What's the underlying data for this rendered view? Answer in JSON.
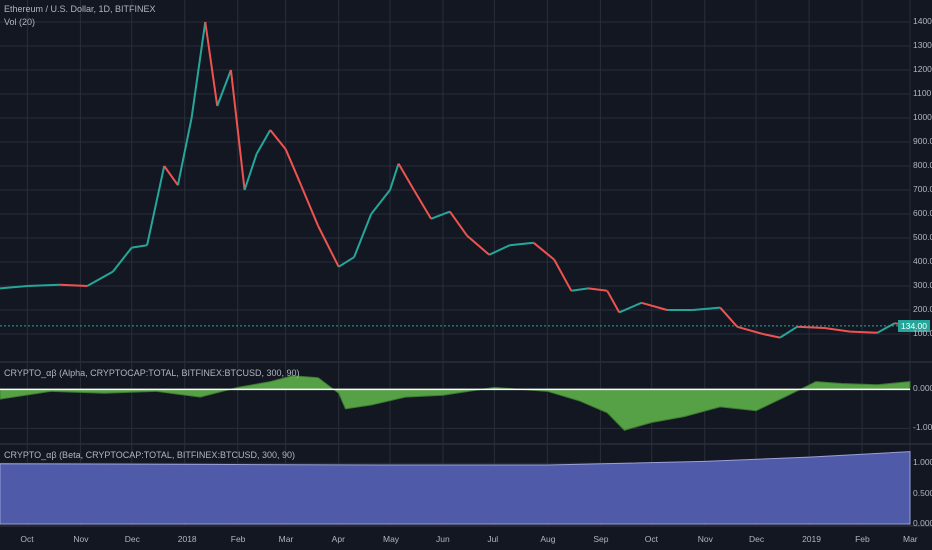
{
  "title": "Ethereum / U.S. Dollar, 1D, BITFINEX",
  "vol_label": "Vol (20)",
  "alpha_label": "CRYPTO_αβ (Alpha, CRYPTOCAP:TOTAL, BITFINEX:BTCUSD, 300, 90)",
  "beta_label": "CRYPTO_αβ (Beta, CRYPTOCAP:TOTAL, BITFINEX:BTCUSD, 300, 90)",
  "last_price": "134.00",
  "colors": {
    "up": "#26a69a",
    "down": "#ef5350",
    "alpha_fill": "#56a146",
    "beta_fill": "#4f5aa8",
    "bg": "#131722",
    "grid": "#2a2e39"
  },
  "chart_data": [
    {
      "type": "line",
      "name": "price",
      "title": "Ethereum / U.S. Dollar, 1D, BITFINEX",
      "y_ticks": [
        "100.00",
        "200.00",
        "300.00",
        "400.00",
        "500.00",
        "600.00",
        "700.00",
        "800.00",
        "900.00",
        "1000.00",
        "1100.00",
        "1200.00",
        "1300.00",
        "1400.00"
      ],
      "ylim": [
        0,
        1450
      ],
      "x_ticks": [
        "Oct",
        "Nov",
        "Dec",
        "2018",
        "Feb",
        "Mar",
        "Apr",
        "May",
        "Jun",
        "Jul",
        "Aug",
        "Sep",
        "Oct",
        "Nov",
        "Dec",
        "2019",
        "Feb",
        "Mar"
      ],
      "series": [
        {
          "values": [
            {
              "x": "2017-09-15",
              "y": 290
            },
            {
              "x": "2017-10-01",
              "y": 300
            },
            {
              "x": "2017-10-20",
              "y": 305
            },
            {
              "x": "2017-11-05",
              "y": 300
            },
            {
              "x": "2017-11-20",
              "y": 360
            },
            {
              "x": "2017-12-01",
              "y": 460
            },
            {
              "x": "2017-12-10",
              "y": 470
            },
            {
              "x": "2017-12-20",
              "y": 800
            },
            {
              "x": "2017-12-28",
              "y": 720
            },
            {
              "x": "2018-01-05",
              "y": 1000
            },
            {
              "x": "2018-01-13",
              "y": 1400
            },
            {
              "x": "2018-01-20",
              "y": 1050
            },
            {
              "x": "2018-01-28",
              "y": 1200
            },
            {
              "x": "2018-02-05",
              "y": 700
            },
            {
              "x": "2018-02-12",
              "y": 850
            },
            {
              "x": "2018-02-20",
              "y": 950
            },
            {
              "x": "2018-03-01",
              "y": 870
            },
            {
              "x": "2018-03-10",
              "y": 720
            },
            {
              "x": "2018-03-20",
              "y": 550
            },
            {
              "x": "2018-04-01",
              "y": 380
            },
            {
              "x": "2018-04-10",
              "y": 420
            },
            {
              "x": "2018-04-20",
              "y": 600
            },
            {
              "x": "2018-05-01",
              "y": 700
            },
            {
              "x": "2018-05-06",
              "y": 810
            },
            {
              "x": "2018-05-15",
              "y": 700
            },
            {
              "x": "2018-05-25",
              "y": 580
            },
            {
              "x": "2018-06-05",
              "y": 610
            },
            {
              "x": "2018-06-15",
              "y": 510
            },
            {
              "x": "2018-06-28",
              "y": 430
            },
            {
              "x": "2018-07-10",
              "y": 470
            },
            {
              "x": "2018-07-24",
              "y": 480
            },
            {
              "x": "2018-08-05",
              "y": 410
            },
            {
              "x": "2018-08-15",
              "y": 280
            },
            {
              "x": "2018-08-25",
              "y": 290
            },
            {
              "x": "2018-09-05",
              "y": 280
            },
            {
              "x": "2018-09-12",
              "y": 190
            },
            {
              "x": "2018-09-25",
              "y": 230
            },
            {
              "x": "2018-10-10",
              "y": 200
            },
            {
              "x": "2018-10-25",
              "y": 200
            },
            {
              "x": "2018-11-10",
              "y": 210
            },
            {
              "x": "2018-11-20",
              "y": 130
            },
            {
              "x": "2018-12-05",
              "y": 100
            },
            {
              "x": "2018-12-15",
              "y": 85
            },
            {
              "x": "2018-12-25",
              "y": 130
            },
            {
              "x": "2019-01-10",
              "y": 125
            },
            {
              "x": "2019-01-25",
              "y": 110
            },
            {
              "x": "2019-02-10",
              "y": 105
            },
            {
              "x": "2019-02-20",
              "y": 145
            },
            {
              "x": "2019-03-01",
              "y": 134
            }
          ]
        }
      ]
    },
    {
      "type": "area",
      "name": "alpha",
      "title": "CRYPTO_αβ (Alpha, CRYPTOCAP:TOTAL, BITFINEX:BTCUSD, 300, 90)",
      "y_ticks": [
        "0.0000",
        "-1.0000"
      ],
      "ylim": [
        -1.3,
        0.6
      ],
      "series": [
        {
          "values": [
            {
              "x": "2017-09-15",
              "y": -0.25
            },
            {
              "x": "2017-10-15",
              "y": -0.05
            },
            {
              "x": "2017-11-15",
              "y": -0.1
            },
            {
              "x": "2017-12-15",
              "y": -0.05
            },
            {
              "x": "2018-01-10",
              "y": -0.2
            },
            {
              "x": "2018-02-01",
              "y": 0.05
            },
            {
              "x": "2018-02-20",
              "y": 0.2
            },
            {
              "x": "2018-03-05",
              "y": 0.35
            },
            {
              "x": "2018-03-20",
              "y": 0.3
            },
            {
              "x": "2018-04-01",
              "y": -0.1
            },
            {
              "x": "2018-04-05",
              "y": -0.5
            },
            {
              "x": "2018-04-20",
              "y": -0.4
            },
            {
              "x": "2018-05-10",
              "y": -0.2
            },
            {
              "x": "2018-06-01",
              "y": -0.15
            },
            {
              "x": "2018-07-01",
              "y": 0.05
            },
            {
              "x": "2018-08-01",
              "y": -0.05
            },
            {
              "x": "2018-08-20",
              "y": -0.3
            },
            {
              "x": "2018-09-05",
              "y": -0.6
            },
            {
              "x": "2018-09-15",
              "y": -1.05
            },
            {
              "x": "2018-10-01",
              "y": -0.85
            },
            {
              "x": "2018-10-20",
              "y": -0.7
            },
            {
              "x": "2018-11-10",
              "y": -0.45
            },
            {
              "x": "2018-12-01",
              "y": -0.55
            },
            {
              "x": "2018-12-20",
              "y": -0.15
            },
            {
              "x": "2019-01-05",
              "y": 0.2
            },
            {
              "x": "2019-01-20",
              "y": 0.15
            },
            {
              "x": "2019-02-10",
              "y": 0.12
            },
            {
              "x": "2019-03-01",
              "y": 0.2
            }
          ]
        }
      ]
    },
    {
      "type": "area",
      "name": "beta",
      "title": "CRYPTO_αβ (Beta, CRYPTOCAP:TOTAL, BITFINEX:BTCUSD, 300, 90)",
      "y_ticks": [
        "1.0000",
        "0.5000",
        "0.0000"
      ],
      "ylim": [
        0,
        1.25
      ],
      "series": [
        {
          "values": [
            {
              "x": "2017-09-15",
              "y": 0.99
            },
            {
              "x": "2018-01-15",
              "y": 0.98
            },
            {
              "x": "2018-05-01",
              "y": 0.97
            },
            {
              "x": "2018-08-01",
              "y": 0.97
            },
            {
              "x": "2018-11-01",
              "y": 1.03
            },
            {
              "x": "2019-01-01",
              "y": 1.1
            },
            {
              "x": "2019-03-01",
              "y": 1.19
            }
          ]
        }
      ]
    }
  ]
}
